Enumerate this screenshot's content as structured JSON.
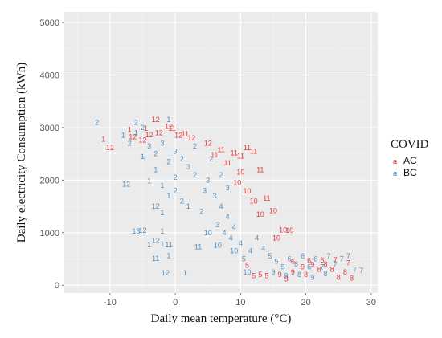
{
  "chart_data": {
    "type": "scatter",
    "title": "",
    "xlabel": "Daily mean temperature (°C)",
    "ylabel": "Daily electricity Consumption (kWh)",
    "xlim": [
      -17,
      31
    ],
    "ylim": [
      -150,
      5200
    ],
    "x_ticks": [
      "-10",
      "0",
      "10",
      "20",
      "30"
    ],
    "y_ticks": [
      "0",
      "1000",
      "2000",
      "3000",
      "4000",
      "5000"
    ],
    "grid": true,
    "legend": {
      "title": "COVID",
      "placement": "right",
      "key_glyph": "a"
    },
    "series": [
      {
        "name": "AC",
        "color": "#e41a1c",
        "points": [
          {
            "x": -11,
            "y": 2780,
            "label": "1"
          },
          {
            "x": -10,
            "y": 2620,
            "label": "12"
          },
          {
            "x": -7,
            "y": 2960,
            "label": "1"
          },
          {
            "x": -6.5,
            "y": 2820,
            "label": "12"
          },
          {
            "x": -5,
            "y": 2760,
            "label": "12"
          },
          {
            "x": -4.5,
            "y": 2980,
            "label": "1"
          },
          {
            "x": -4,
            "y": 2860,
            "label": "12"
          },
          {
            "x": -3,
            "y": 3150,
            "label": "12"
          },
          {
            "x": -2.5,
            "y": 2900,
            "label": "12"
          },
          {
            "x": -1,
            "y": 3020,
            "label": "12"
          },
          {
            "x": -0.5,
            "y": 2980,
            "label": "11"
          },
          {
            "x": 0.5,
            "y": 2850,
            "label": "12"
          },
          {
            "x": 1.5,
            "y": 2880,
            "label": "11"
          },
          {
            "x": 2.5,
            "y": 2800,
            "label": "12"
          },
          {
            "x": 5,
            "y": 2700,
            "label": "12"
          },
          {
            "x": 6,
            "y": 2480,
            "label": "11"
          },
          {
            "x": 7,
            "y": 2580,
            "label": "11"
          },
          {
            "x": 8,
            "y": 2330,
            "label": "11"
          },
          {
            "x": 9,
            "y": 2520,
            "label": "11"
          },
          {
            "x": 10,
            "y": 2460,
            "label": "11"
          },
          {
            "x": 11,
            "y": 2620,
            "label": "11"
          },
          {
            "x": 12,
            "y": 2550,
            "label": "11"
          },
          {
            "x": 13,
            "y": 2200,
            "label": "11"
          },
          {
            "x": 10,
            "y": 2150,
            "label": "10"
          },
          {
            "x": 9.5,
            "y": 1950,
            "label": "10"
          },
          {
            "x": 11,
            "y": 1790,
            "label": "10"
          },
          {
            "x": 14,
            "y": 1650,
            "label": "11"
          },
          {
            "x": 12,
            "y": 1600,
            "label": "10"
          },
          {
            "x": 15,
            "y": 1420,
            "label": "10"
          },
          {
            "x": 13,
            "y": 1350,
            "label": "10"
          },
          {
            "x": 16.5,
            "y": 1050,
            "label": "10"
          },
          {
            "x": 17.5,
            "y": 1040,
            "label": "10"
          },
          {
            "x": 15.5,
            "y": 900,
            "label": "10"
          },
          {
            "x": 11,
            "y": 380,
            "label": "5"
          },
          {
            "x": 12,
            "y": 180,
            "label": "5"
          },
          {
            "x": 13,
            "y": 200,
            "label": "5"
          },
          {
            "x": 14,
            "y": 180,
            "label": "5"
          },
          {
            "x": 16,
            "y": 200,
            "label": "9"
          },
          {
            "x": 17,
            "y": 120,
            "label": "9"
          },
          {
            "x": 18,
            "y": 250,
            "label": "9"
          },
          {
            "x": 19.5,
            "y": 350,
            "label": "9"
          },
          {
            "x": 21,
            "y": 390,
            "label": "9"
          },
          {
            "x": 20,
            "y": 200,
            "label": "8"
          },
          {
            "x": 22,
            "y": 300,
            "label": "8"
          },
          {
            "x": 23,
            "y": 400,
            "label": "8"
          },
          {
            "x": 24,
            "y": 300,
            "label": "8"
          },
          {
            "x": 25,
            "y": 150,
            "label": "8"
          },
          {
            "x": 26,
            "y": 250,
            "label": "8"
          },
          {
            "x": 27,
            "y": 130,
            "label": "8"
          },
          {
            "x": 24.5,
            "y": 480,
            "label": "7"
          },
          {
            "x": 26.5,
            "y": 420,
            "label": "7"
          },
          {
            "x": 18,
            "y": 450,
            "label": "6"
          },
          {
            "x": 20.5,
            "y": 470,
            "label": "6"
          },
          {
            "x": 22.5,
            "y": 480,
            "label": "6"
          }
        ]
      },
      {
        "name": "BC",
        "color": "#377eb8",
        "points": [
          {
            "x": -12,
            "y": 3100,
            "label": "2"
          },
          {
            "x": -8,
            "y": 2850,
            "label": "1"
          },
          {
            "x": -7,
            "y": 2700,
            "label": "2"
          },
          {
            "x": -6,
            "y": 3100,
            "label": "2"
          },
          {
            "x": -5,
            "y": 3000,
            "label": "2"
          },
          {
            "x": -4,
            "y": 2650,
            "label": "3"
          },
          {
            "x": -3,
            "y": 2500,
            "label": "2"
          },
          {
            "x": -2,
            "y": 2700,
            "label": "3"
          },
          {
            "x": -1,
            "y": 3150,
            "label": "1"
          },
          {
            "x": -1,
            "y": 2350,
            "label": "2"
          },
          {
            "x": 0,
            "y": 2550,
            "label": "3"
          },
          {
            "x": 1,
            "y": 2400,
            "label": "2"
          },
          {
            "x": 2,
            "y": 2250,
            "label": "3"
          },
          {
            "x": 3,
            "y": 2100,
            "label": "2"
          },
          {
            "x": -5,
            "y": 2450,
            "label": "1"
          },
          {
            "x": -7.5,
            "y": 1920,
            "label": "12"
          },
          {
            "x": -4,
            "y": 1980,
            "label": "1"
          },
          {
            "x": -2,
            "y": 1900,
            "label": "1"
          },
          {
            "x": -1,
            "y": 1700,
            "label": "1"
          },
          {
            "x": 0,
            "y": 1800,
            "label": "2"
          },
          {
            "x": 1,
            "y": 1600,
            "label": "2"
          },
          {
            "x": 2,
            "y": 1500,
            "label": "1"
          },
          {
            "x": -3,
            "y": 1500,
            "label": "12"
          },
          {
            "x": -2,
            "y": 1380,
            "label": "1"
          },
          {
            "x": -6,
            "y": 1030,
            "label": "13"
          },
          {
            "x": -5,
            "y": 1040,
            "label": "12"
          },
          {
            "x": -2,
            "y": 1030,
            "label": "1"
          },
          {
            "x": -3,
            "y": 850,
            "label": "12"
          },
          {
            "x": -4,
            "y": 770,
            "label": "1"
          },
          {
            "x": -2,
            "y": 780,
            "label": "1"
          },
          {
            "x": -1,
            "y": 770,
            "label": "11"
          },
          {
            "x": -3,
            "y": 510,
            "label": "11"
          },
          {
            "x": -1,
            "y": 560,
            "label": "1"
          },
          {
            "x": -1.5,
            "y": 230,
            "label": "12"
          },
          {
            "x": 1.5,
            "y": 230,
            "label": "1"
          },
          {
            "x": 3.5,
            "y": 730,
            "label": "11"
          },
          {
            "x": 4,
            "y": 1400,
            "label": "2"
          },
          {
            "x": 4.5,
            "y": 1800,
            "label": "3"
          },
          {
            "x": 5,
            "y": 2000,
            "label": "3"
          },
          {
            "x": 6,
            "y": 1700,
            "label": "3"
          },
          {
            "x": 7,
            "y": 1500,
            "label": "4"
          },
          {
            "x": 8,
            "y": 1300,
            "label": "4"
          },
          {
            "x": 6.5,
            "y": 1150,
            "label": "3"
          },
          {
            "x": 7.5,
            "y": 1000,
            "label": "4"
          },
          {
            "x": 6.5,
            "y": 760,
            "label": "10"
          },
          {
            "x": 8.5,
            "y": 900,
            "label": "4"
          },
          {
            "x": 9,
            "y": 1100,
            "label": "4"
          },
          {
            "x": 10,
            "y": 800,
            "label": "4"
          },
          {
            "x": 10.5,
            "y": 500,
            "label": "5"
          },
          {
            "x": 11.5,
            "y": 650,
            "label": "4"
          },
          {
            "x": 12.5,
            "y": 900,
            "label": "4"
          },
          {
            "x": 13.5,
            "y": 700,
            "label": "4"
          },
          {
            "x": 14.5,
            "y": 550,
            "label": "5"
          },
          {
            "x": 15.5,
            "y": 450,
            "label": "5"
          },
          {
            "x": 16.5,
            "y": 350,
            "label": "5"
          },
          {
            "x": 17.5,
            "y": 500,
            "label": "6"
          },
          {
            "x": 18.5,
            "y": 400,
            "label": "6"
          },
          {
            "x": 19.5,
            "y": 550,
            "label": "6"
          },
          {
            "x": 20.5,
            "y": 350,
            "label": "6"
          },
          {
            "x": 21.5,
            "y": 500,
            "label": "6"
          },
          {
            "x": 22.5,
            "y": 350,
            "label": "7"
          },
          {
            "x": 23.5,
            "y": 550,
            "label": "7"
          },
          {
            "x": 24.5,
            "y": 400,
            "label": "7"
          },
          {
            "x": 25.5,
            "y": 500,
            "label": "7"
          },
          {
            "x": 26.5,
            "y": 550,
            "label": "7"
          },
          {
            "x": 27.5,
            "y": 300,
            "label": "7"
          },
          {
            "x": 28.5,
            "y": 280,
            "label": "7"
          },
          {
            "x": 19,
            "y": 200,
            "label": "8"
          },
          {
            "x": 21,
            "y": 150,
            "label": "9"
          },
          {
            "x": 23,
            "y": 220,
            "label": "8"
          },
          {
            "x": 17,
            "y": 180,
            "label": "9"
          },
          {
            "x": 15,
            "y": 250,
            "label": "9"
          },
          {
            "x": 11,
            "y": 250,
            "label": "10"
          },
          {
            "x": 9,
            "y": 650,
            "label": "10"
          },
          {
            "x": 5,
            "y": 1000,
            "label": "10"
          },
          {
            "x": 7,
            "y": 2100,
            "label": "2"
          },
          {
            "x": 8,
            "y": 1850,
            "label": "3"
          },
          {
            "x": -6,
            "y": 2900,
            "label": "1"
          },
          {
            "x": -3,
            "y": 2200,
            "label": "1"
          },
          {
            "x": 0,
            "y": 2050,
            "label": "2"
          },
          {
            "x": 3,
            "y": 2650,
            "label": "2"
          },
          {
            "x": 5.5,
            "y": 2400,
            "label": "2"
          }
        ]
      }
    ]
  }
}
